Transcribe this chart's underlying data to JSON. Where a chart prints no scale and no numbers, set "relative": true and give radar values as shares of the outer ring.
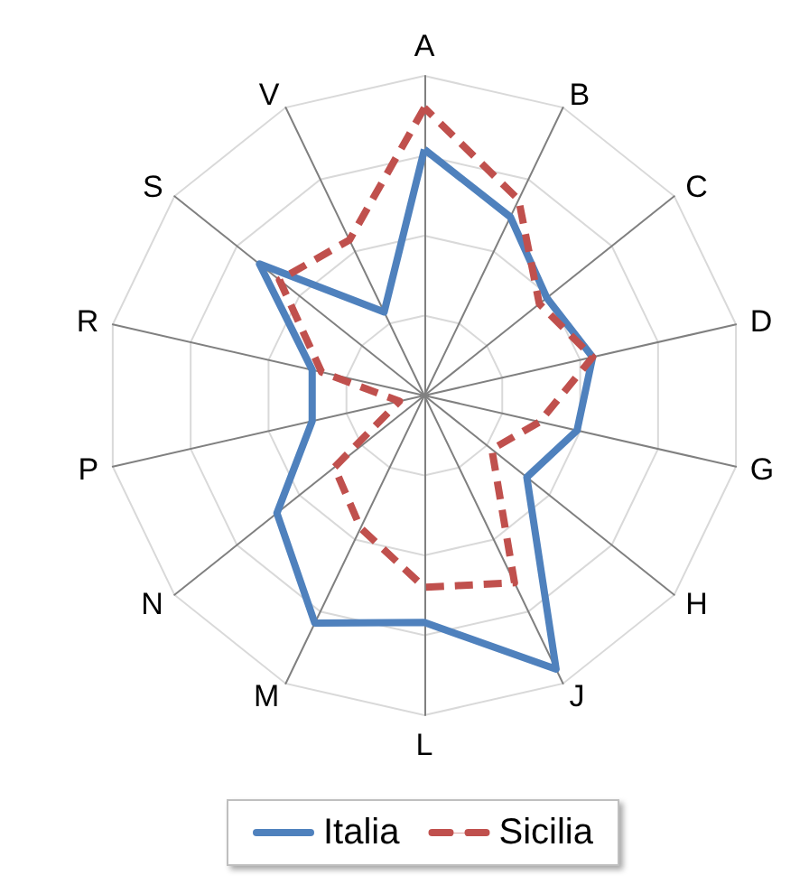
{
  "chart_data": {
    "type": "radar",
    "relative": true,
    "grid": true,
    "legend": "bottom",
    "marker": "none",
    "categories": [
      "A",
      "B",
      "C",
      "D",
      "G",
      "H",
      "J",
      "L",
      "M",
      "N",
      "P",
      "R",
      "S",
      "V"
    ],
    "series": [
      {
        "name": "Italia",
        "color": "#4f81bd",
        "line_style": "solid",
        "values": [
          0.77,
          0.62,
          0.49,
          0.54,
          0.49,
          0.41,
          0.95,
          0.71,
          0.79,
          0.59,
          0.36,
          0.36,
          0.66,
          0.29
        ]
      },
      {
        "name": "Sicilia",
        "color": "#c0504d",
        "line_style": "dashed",
        "values": [
          0.9,
          0.68,
          0.46,
          0.54,
          0.37,
          0.27,
          0.65,
          0.6,
          0.46,
          0.36,
          0.08,
          0.33,
          0.58,
          0.54
        ]
      }
    ]
  }
}
